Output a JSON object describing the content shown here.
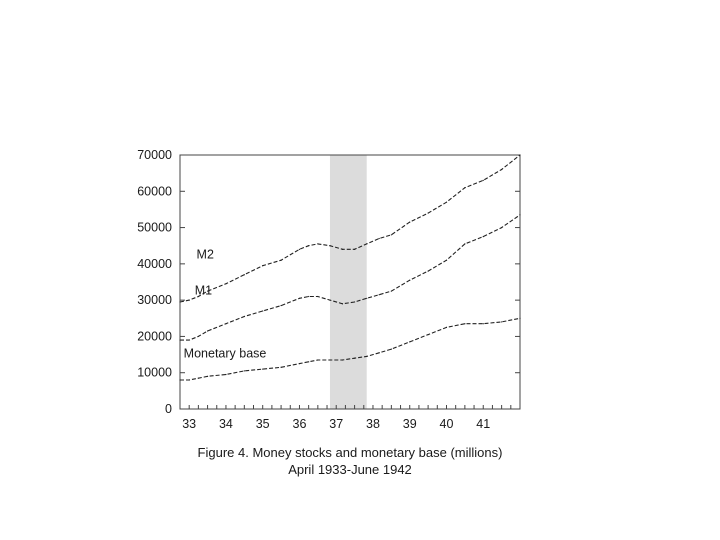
{
  "caption": {
    "line1": "Figure 4.  Money stocks and monetary base (millions)",
    "line2": "April 1933-June 1942"
  },
  "chart_data": {
    "type": "line",
    "title": "",
    "xlabel": "",
    "ylabel": "",
    "xlim": [
      1933.25,
      1942.5
    ],
    "ylim": [
      0,
      70000
    ],
    "grid": false,
    "legend": "none (series labelled directly on plot)",
    "line_style": "dashed",
    "line_color": "#222222",
    "y_ticks": [
      0,
      10000,
      20000,
      30000,
      40000,
      50000,
      60000,
      70000
    ],
    "y_tick_labels": [
      "0",
      "10000",
      "20000",
      "30000",
      "40000",
      "50000",
      "60000",
      "70000"
    ],
    "x_ticks": [
      1933.5,
      1934.5,
      1935.5,
      1936.5,
      1937.5,
      1938.5,
      1939.5,
      1940.5,
      1941.5
    ],
    "x_tick_labels": [
      "33",
      "34",
      "35",
      "36",
      "37",
      "38",
      "39",
      "40",
      "41"
    ],
    "shaded_recession": {
      "start": 1937.33,
      "end": 1938.33,
      "color": "#dcdcdc"
    },
    "series": [
      {
        "name": "M2",
        "x": [
          1933.25,
          1933.5,
          1933.75,
          1934.0,
          1934.5,
          1935.0,
          1935.5,
          1936.0,
          1936.5,
          1936.75,
          1937.0,
          1937.33,
          1937.67,
          1938.0,
          1938.33,
          1938.67,
          1939.0,
          1939.5,
          1940.0,
          1940.5,
          1941.0,
          1941.5,
          1942.0,
          1942.5
        ],
        "values": [
          29500,
          30000,
          31000,
          32500,
          34500,
          37000,
          39500,
          41000,
          44000,
          45000,
          45500,
          45000,
          44000,
          44000,
          45500,
          47000,
          48000,
          51500,
          54000,
          57000,
          61000,
          63000,
          66000,
          70000
        ]
      },
      {
        "name": "M1",
        "x": [
          1933.25,
          1933.5,
          1933.75,
          1934.0,
          1934.5,
          1935.0,
          1935.5,
          1936.0,
          1936.5,
          1936.75,
          1937.0,
          1937.33,
          1937.67,
          1938.0,
          1938.33,
          1938.67,
          1939.0,
          1939.5,
          1940.0,
          1940.5,
          1941.0,
          1941.5,
          1942.0,
          1942.5
        ],
        "values": [
          19000,
          19000,
          20000,
          21500,
          23500,
          25500,
          27000,
          28500,
          30500,
          31000,
          31000,
          30000,
          29000,
          29500,
          30500,
          31500,
          32500,
          35500,
          38000,
          41000,
          45500,
          47500,
          50000,
          53500
        ]
      },
      {
        "name": "Monetary base",
        "x": [
          1933.25,
          1933.5,
          1933.75,
          1934.0,
          1934.5,
          1935.0,
          1935.5,
          1936.0,
          1936.5,
          1936.75,
          1937.0,
          1937.33,
          1937.67,
          1938.0,
          1938.33,
          1938.67,
          1939.0,
          1939.5,
          1940.0,
          1940.5,
          1941.0,
          1941.5,
          1942.0,
          1942.5
        ],
        "values": [
          8000,
          8000,
          8500,
          9000,
          9500,
          10500,
          11000,
          11500,
          12500,
          13000,
          13500,
          13500,
          13500,
          14000,
          14500,
          15500,
          16500,
          18500,
          20500,
          22500,
          23500,
          23500,
          24000,
          25000
        ]
      }
    ],
    "series_label_anchor_x": [
      1933.7,
      1933.65,
      1933.35
    ],
    "series_label_anchor_y": [
      41500,
      31500,
      14200
    ]
  }
}
